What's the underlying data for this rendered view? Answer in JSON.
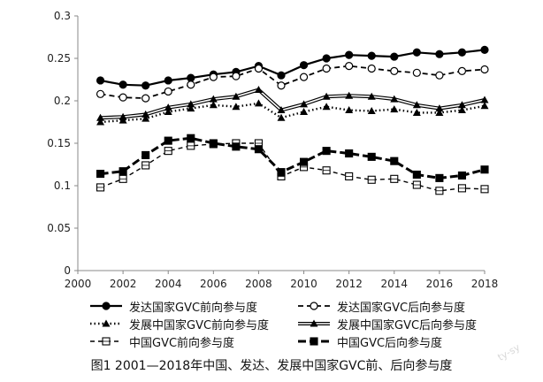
{
  "chart_data": {
    "type": "line",
    "x": [
      2001,
      2002,
      2003,
      2004,
      2005,
      2006,
      2007,
      2008,
      2009,
      2010,
      2011,
      2012,
      2013,
      2014,
      2015,
      2016,
      2017,
      2018
    ],
    "xticks": [
      "2000",
      "2002",
      "2004",
      "2006",
      "2008",
      "2010",
      "2012",
      "2014",
      "2016",
      "2018"
    ],
    "yticks": [
      "0",
      "0.05",
      "0.1",
      "0.15",
      "0.2",
      "0.25",
      "0.3"
    ],
    "xlim": [
      2000,
      2018
    ],
    "ylim": [
      0,
      0.3
    ],
    "grid": false,
    "legend_position": "bottom",
    "series": [
      {
        "name": "发达国家GVC前向参与度",
        "style": "solid-circle",
        "values": [
          0.224,
          0.219,
          0.218,
          0.224,
          0.227,
          0.231,
          0.234,
          0.241,
          0.23,
          0.242,
          0.25,
          0.254,
          0.253,
          0.252,
          0.257,
          0.255,
          0.257,
          0.26
        ]
      },
      {
        "name": "发达国家GVC后向参与度",
        "style": "dashed-open-circle",
        "values": [
          0.208,
          0.204,
          0.203,
          0.211,
          0.219,
          0.228,
          0.229,
          0.238,
          0.218,
          0.228,
          0.238,
          0.241,
          0.238,
          0.235,
          0.233,
          0.23,
          0.235,
          0.237
        ]
      },
      {
        "name": "发展中国家GVC前向参与度",
        "style": "dotted-triangle",
        "values": [
          0.175,
          0.177,
          0.179,
          0.187,
          0.191,
          0.195,
          0.193,
          0.197,
          0.18,
          0.187,
          0.193,
          0.189,
          0.188,
          0.19,
          0.186,
          0.186,
          0.189,
          0.194
        ]
      },
      {
        "name": "发展中国家GVC后向参与度",
        "style": "double-line-triangle",
        "values": [
          0.18,
          0.181,
          0.184,
          0.192,
          0.196,
          0.202,
          0.205,
          0.213,
          0.189,
          0.196,
          0.205,
          0.206,
          0.205,
          0.202,
          0.195,
          0.191,
          0.195,
          0.201
        ]
      },
      {
        "name": "中国GVC前向参与度",
        "style": "dashed-open-square",
        "values": [
          0.098,
          0.108,
          0.124,
          0.141,
          0.147,
          0.149,
          0.15,
          0.15,
          0.111,
          0.122,
          0.118,
          0.111,
          0.107,
          0.108,
          0.101,
          0.094,
          0.097,
          0.096
        ]
      },
      {
        "name": "中国GVC后向参与度",
        "style": "dashed-filled-square",
        "values": [
          0.114,
          0.117,
          0.136,
          0.153,
          0.156,
          0.15,
          0.146,
          0.143,
          0.116,
          0.128,
          0.141,
          0.138,
          0.134,
          0.129,
          0.113,
          0.109,
          0.112,
          0.119
        ]
      }
    ]
  },
  "caption": "图1  2001—2018年中国、发达、发展中国家GVC前、后向参与度",
  "watermark": "ty-sy"
}
